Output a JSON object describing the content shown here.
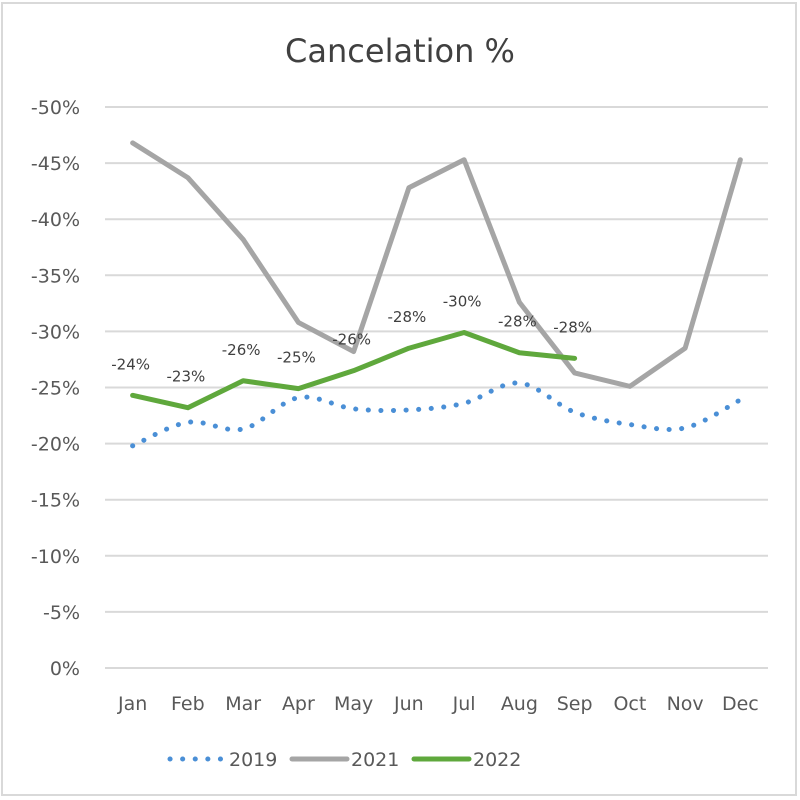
{
  "chart_data": {
    "type": "line",
    "title": "Cancelation %",
    "xlabel": "",
    "ylabel": "",
    "categories": [
      "Jan",
      "Feb",
      "Mar",
      "Apr",
      "May",
      "Jun",
      "Jul",
      "Aug",
      "Sep",
      "Oct",
      "Nov",
      "Dec"
    ],
    "y_axis": {
      "min": 0,
      "max": 50,
      "step": 5,
      "reversed_sign_display": true,
      "tick_labels": [
        "0%",
        "-5%",
        "-10%",
        "-15%",
        "-20%",
        "-25%",
        "-30%",
        "-35%",
        "-40%",
        "-45%",
        "-50%"
      ]
    },
    "grid": true,
    "legend_position": "bottom",
    "series": [
      {
        "name": "2019",
        "color": "#4a8fd6",
        "style": "dotted",
        "values": [
          19.8,
          21.9,
          21.3,
          24.1,
          23.1,
          23.0,
          23.6,
          25.4,
          22.8,
          21.7,
          21.4,
          23.9
        ],
        "smooth": true,
        "data_labels": null
      },
      {
        "name": "2021",
        "color": "#a5a5a5",
        "style": "solid",
        "values": [
          46.8,
          43.7,
          38.2,
          30.8,
          28.2,
          42.8,
          45.3,
          32.6,
          26.3,
          25.1,
          28.5,
          45.3
        ],
        "smooth": false,
        "data_labels": null
      },
      {
        "name": "2022",
        "color": "#5fa83c",
        "style": "solid",
        "values": [
          24.3,
          23.2,
          25.6,
          24.9,
          26.5,
          28.5,
          29.9,
          28.1,
          27.6,
          null,
          null,
          null
        ],
        "smooth": false,
        "data_labels": [
          "-24%",
          "-23%",
          "-26%",
          "-25%",
          "-26%",
          "-28%",
          "-30%",
          "-28%",
          "-28%"
        ]
      }
    ]
  }
}
